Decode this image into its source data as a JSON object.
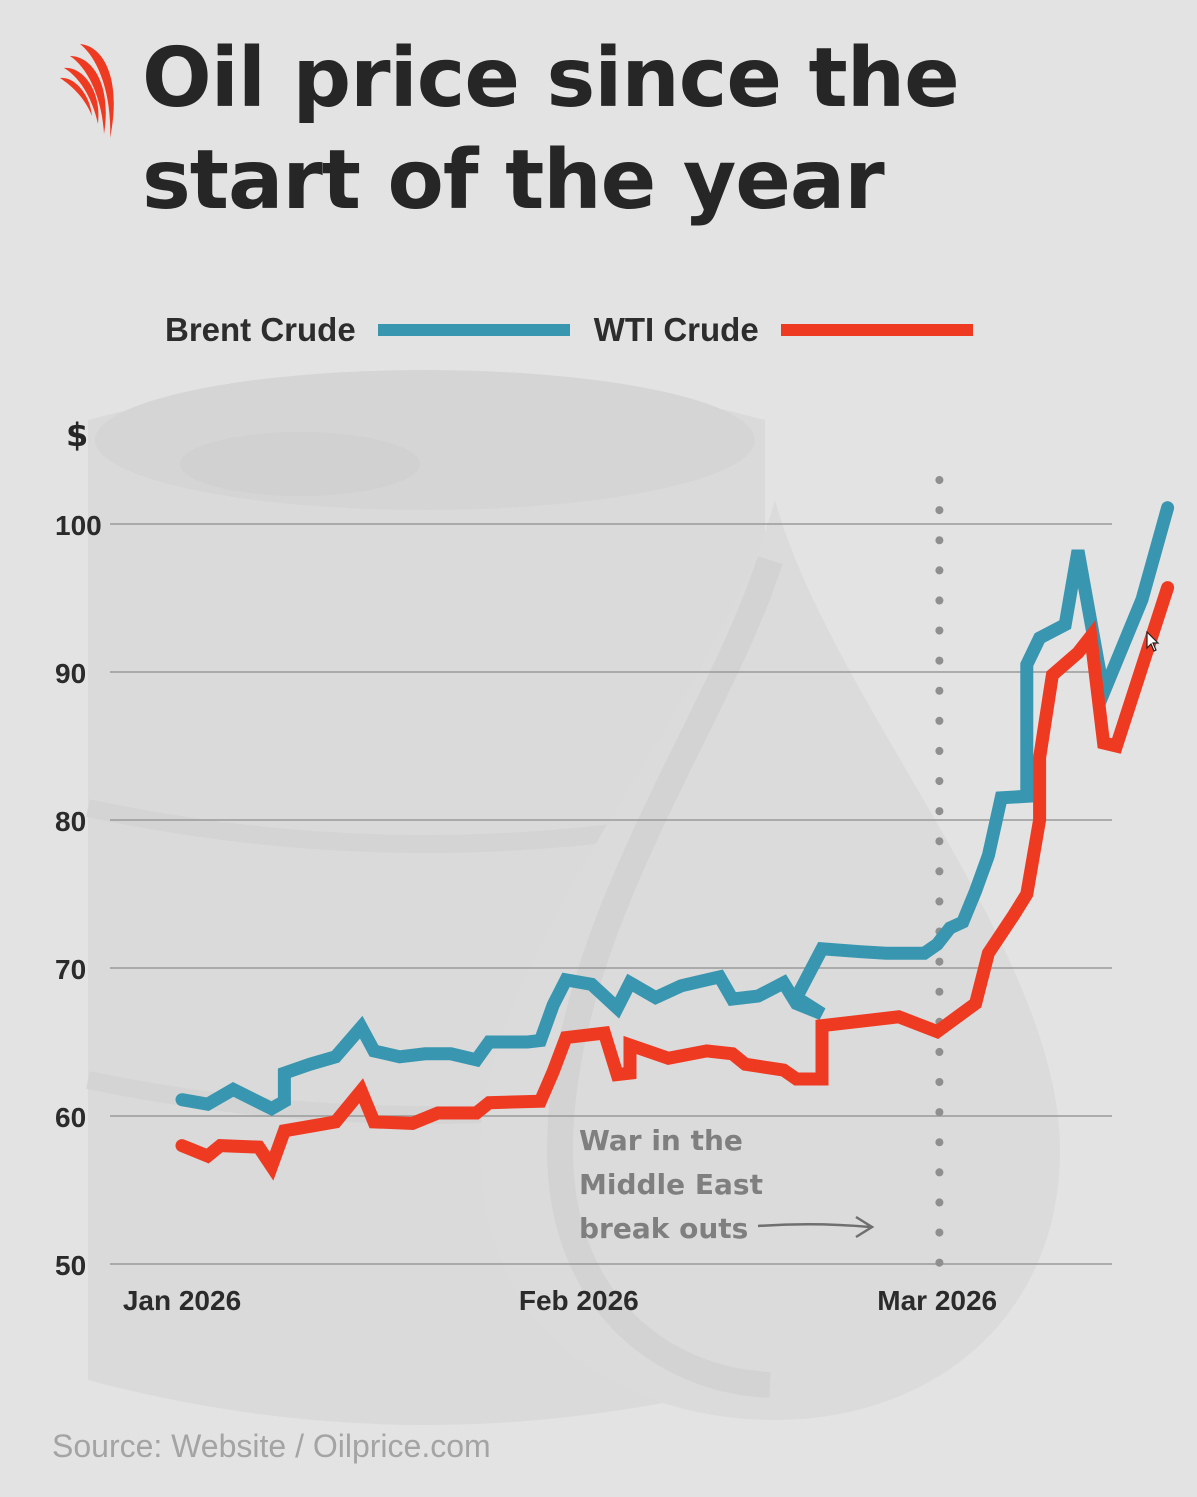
{
  "title": "Oil price since the start of the year",
  "title_lines": [
    "Oil price since the",
    "start of the year"
  ],
  "logo_icon": "sbs-logo-icon",
  "legend": [
    {
      "label": "Brent Crude",
      "color": "#3896b0"
    },
    {
      "label": "WTI Crude",
      "color": "#ef3a22"
    }
  ],
  "source": "Source: Website / Oilprice.com",
  "annotation": {
    "lines": [
      "War in the",
      "Middle East",
      "break outs"
    ],
    "date": "2026-02-28"
  },
  "chart_data": {
    "type": "line",
    "ylabel": "$",
    "ylim": [
      50,
      100
    ],
    "yticks": [
      50,
      60,
      70,
      80,
      90,
      100
    ],
    "xlim": [
      "2026-01-01",
      "2026-03-23"
    ],
    "xticks": [
      {
        "label": "Jan 2026",
        "date": "2026-01-01"
      },
      {
        "label": "Feb 2026",
        "date": "2026-02-01"
      },
      {
        "label": "Mar 2026",
        "date": "2026-03-01"
      }
    ],
    "grid": "horizontal",
    "legend_position": "top",
    "series": [
      {
        "name": "Brent Crude",
        "color": "#3896b0",
        "points": [
          [
            "2026-01-01",
            61.1
          ],
          [
            "2026-01-03",
            60.8
          ],
          [
            "2026-01-05",
            61.8
          ],
          [
            "2026-01-08",
            60.5
          ],
          [
            "2026-01-09",
            61.0
          ],
          [
            "2026-01-09",
            62.9
          ],
          [
            "2026-01-11",
            63.5
          ],
          [
            "2026-01-13",
            64.0
          ],
          [
            "2026-01-15",
            66.0
          ],
          [
            "2026-01-16",
            64.4
          ],
          [
            "2026-01-18",
            64.0
          ],
          [
            "2026-01-20",
            64.2
          ],
          [
            "2026-01-22",
            64.2
          ],
          [
            "2026-01-24",
            63.8
          ],
          [
            "2026-01-25",
            65.0
          ],
          [
            "2026-01-28",
            65.0
          ],
          [
            "2026-01-29",
            65.1
          ],
          [
            "2026-01-30",
            67.5
          ],
          [
            "2026-01-31",
            69.2
          ],
          [
            "2026-02-02",
            68.9
          ],
          [
            "2026-02-04",
            67.3
          ],
          [
            "2026-02-05",
            69.0
          ],
          [
            "2026-02-07",
            68.0
          ],
          [
            "2026-02-09",
            68.8
          ],
          [
            "2026-02-11",
            69.2
          ],
          [
            "2026-02-12",
            69.4
          ],
          [
            "2026-02-13",
            67.9
          ],
          [
            "2026-02-15",
            68.1
          ],
          [
            "2026-02-17",
            69.0
          ],
          [
            "2026-02-18",
            67.6
          ],
          [
            "2026-02-20",
            66.9
          ],
          [
            "2026-02-18",
            68.0
          ],
          [
            "2026-02-20",
            71.3
          ],
          [
            "2026-02-23",
            71.1
          ],
          [
            "2026-02-25",
            71.0
          ],
          [
            "2026-02-28",
            71.0
          ],
          [
            "2026-03-01",
            71.6
          ],
          [
            "2026-03-02",
            72.7
          ],
          [
            "2026-03-03",
            73.1
          ],
          [
            "2026-03-04",
            75.2
          ],
          [
            "2026-03-05",
            77.6
          ],
          [
            "2026-03-06",
            81.5
          ],
          [
            "2026-03-08",
            81.6
          ],
          [
            "2026-03-08",
            90.5
          ],
          [
            "2026-03-09",
            92.3
          ],
          [
            "2026-03-11",
            93.2
          ],
          [
            "2026-03-12",
            98.2
          ],
          [
            "2026-03-14",
            88.6
          ],
          [
            "2026-03-17",
            94.9
          ],
          [
            "2026-03-19",
            101.1
          ]
        ]
      },
      {
        "name": "WTI Crude",
        "color": "#ef3a22",
        "points": [
          [
            "2026-01-01",
            58.0
          ],
          [
            "2026-01-03",
            57.3
          ],
          [
            "2026-01-04",
            58.0
          ],
          [
            "2026-01-07",
            57.9
          ],
          [
            "2026-01-08",
            56.6
          ],
          [
            "2026-01-09",
            59.0
          ],
          [
            "2026-01-13",
            59.6
          ],
          [
            "2026-01-15",
            61.7
          ],
          [
            "2026-01-16",
            59.6
          ],
          [
            "2026-01-19",
            59.5
          ],
          [
            "2026-01-21",
            60.2
          ],
          [
            "2026-01-24",
            60.2
          ],
          [
            "2026-01-25",
            60.9
          ],
          [
            "2026-01-29",
            61.0
          ],
          [
            "2026-01-30",
            63.0
          ],
          [
            "2026-01-31",
            65.3
          ],
          [
            "2026-02-03",
            65.6
          ],
          [
            "2026-02-04",
            62.8
          ],
          [
            "2026-02-05",
            62.9
          ],
          [
            "2026-02-05",
            64.8
          ],
          [
            "2026-02-08",
            63.9
          ],
          [
            "2026-02-11",
            64.4
          ],
          [
            "2026-02-13",
            64.2
          ],
          [
            "2026-02-14",
            63.5
          ],
          [
            "2026-02-17",
            63.1
          ],
          [
            "2026-02-18",
            62.5
          ],
          [
            "2026-02-20",
            62.5
          ],
          [
            "2026-02-20",
            66.1
          ],
          [
            "2026-02-26",
            66.7
          ],
          [
            "2026-03-01",
            65.7
          ],
          [
            "2026-03-04",
            67.6
          ],
          [
            "2026-03-05",
            71.0
          ],
          [
            "2026-03-07",
            73.6
          ],
          [
            "2026-03-08",
            75.0
          ],
          [
            "2026-03-09",
            80.0
          ],
          [
            "2026-03-09",
            84.2
          ],
          [
            "2026-03-10",
            89.8
          ],
          [
            "2026-03-12",
            91.3
          ],
          [
            "2026-03-13",
            92.4
          ],
          [
            "2026-03-14",
            85.2
          ],
          [
            "2026-03-15",
            85.0
          ],
          [
            "2026-03-19",
            95.7
          ]
        ]
      }
    ]
  }
}
